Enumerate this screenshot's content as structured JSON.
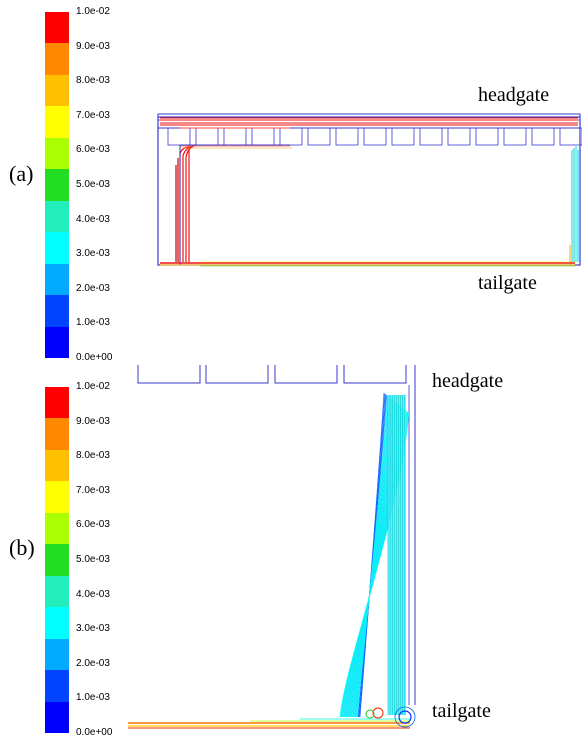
{
  "colorbar": {
    "ticks": [
      "1.0e-02",
      "9.0e-03",
      "8.0e-03",
      "7.0e-03",
      "6.0e-03",
      "5.0e-03",
      "4.0e-03",
      "3.0e-03",
      "2.0e-03",
      "1.0e-03",
      "0.0e+00"
    ],
    "colors": [
      "#ff0000",
      "#ff8800",
      "#ffc000",
      "#ffff00",
      "#aaff00",
      "#22dd22",
      "#22eebb",
      "#00ffff",
      "#00aaff",
      "#0044ff",
      "#0000ff"
    ]
  },
  "panel_a": {
    "label": "(a)",
    "headgate_label": "headgate",
    "tailgate_label": "tailgate"
  },
  "panel_b": {
    "label": "(b)",
    "headgate_label": "headgate",
    "tailgate_label": "tailgate"
  }
}
